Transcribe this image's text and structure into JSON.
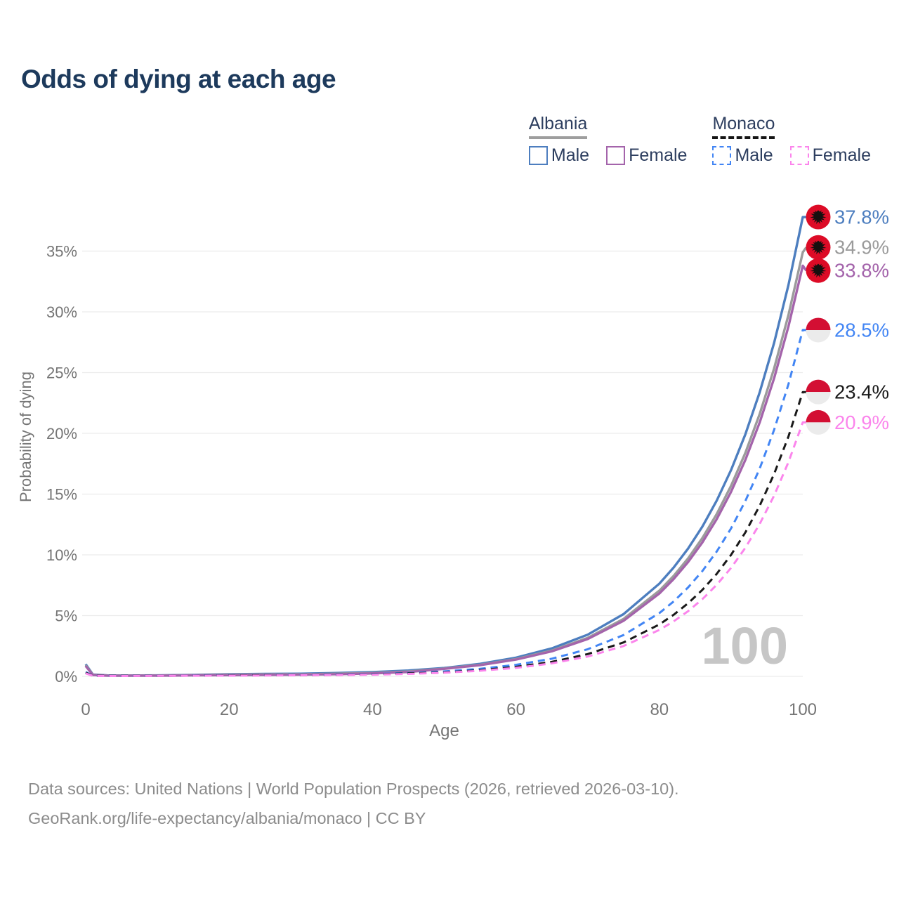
{
  "title": "Odds of dying at each age",
  "legend": {
    "groups": [
      {
        "label": "Albania",
        "line_style": "solid",
        "underline_color": "#9e9e9e",
        "items": [
          {
            "label": "Male",
            "color": "#4d7ebf",
            "dashed": false
          },
          {
            "label": "Female",
            "color": "#a464ab",
            "dashed": false
          }
        ]
      },
      {
        "label": "Monaco",
        "line_style": "dashed",
        "underline_color": "#151515",
        "items": [
          {
            "label": "Male",
            "color": "#4285f4",
            "dashed": true
          },
          {
            "label": "Female",
            "color": "#fb85ec",
            "dashed": true
          }
        ]
      }
    ]
  },
  "chart_data": {
    "type": "line",
    "title": "Odds of dying at each age",
    "xlabel": "Age",
    "ylabel": "Probability of dying",
    "xlim": [
      0,
      100
    ],
    "ylim": [
      0,
      38
    ],
    "grid": "horizontal-only",
    "watermark": "100",
    "x_ticks": [
      {
        "value": 0,
        "label": "0"
      },
      {
        "value": 20,
        "label": "20"
      },
      {
        "value": 40,
        "label": "40"
      },
      {
        "value": 60,
        "label": "60"
      },
      {
        "value": 80,
        "label": "80"
      },
      {
        "value": 100,
        "label": "100"
      }
    ],
    "y_ticks": [
      {
        "value": 0,
        "label": "0%"
      },
      {
        "value": 5,
        "label": "5%"
      },
      {
        "value": 10,
        "label": "10%"
      },
      {
        "value": 15,
        "label": "15%"
      },
      {
        "value": 20,
        "label": "20%"
      },
      {
        "value": 25,
        "label": "25%"
      },
      {
        "value": 30,
        "label": "30%"
      },
      {
        "value": 35,
        "label": "35%"
      }
    ],
    "series": [
      {
        "id": "albania-male",
        "country": "Albania",
        "group": "Male",
        "color": "#4d7ebf",
        "dashed": false,
        "flag": "albania",
        "end_label": "37.8%",
        "end_value": 37.8,
        "points": [
          [
            0,
            1.0
          ],
          [
            1,
            0.15
          ],
          [
            3,
            0.08
          ],
          [
            5,
            0.07
          ],
          [
            10,
            0.08
          ],
          [
            15,
            0.12
          ],
          [
            20,
            0.18
          ],
          [
            25,
            0.2
          ],
          [
            30,
            0.22
          ],
          [
            35,
            0.28
          ],
          [
            40,
            0.35
          ],
          [
            45,
            0.48
          ],
          [
            50,
            0.69
          ],
          [
            55,
            1.03
          ],
          [
            60,
            1.54
          ],
          [
            65,
            2.3
          ],
          [
            70,
            3.43
          ],
          [
            75,
            5.12
          ],
          [
            80,
            7.63
          ],
          [
            82,
            8.96
          ],
          [
            84,
            10.51
          ],
          [
            86,
            12.33
          ],
          [
            88,
            14.47
          ],
          [
            90,
            16.98
          ],
          [
            92,
            19.93
          ],
          [
            94,
            23.39
          ],
          [
            96,
            27.45
          ],
          [
            98,
            32.21
          ],
          [
            100,
            37.8
          ]
        ]
      },
      {
        "id": "albania-all",
        "country": "Albania",
        "group": "All",
        "color": "#9b9b9b",
        "dashed": false,
        "flag": "albania",
        "end_label": "34.9%",
        "end_value": 34.9,
        "points": [
          [
            0,
            0.92
          ],
          [
            1,
            0.13
          ],
          [
            3,
            0.07
          ],
          [
            5,
            0.06
          ],
          [
            10,
            0.07
          ],
          [
            15,
            0.1
          ],
          [
            20,
            0.14
          ],
          [
            25,
            0.16
          ],
          [
            30,
            0.18
          ],
          [
            35,
            0.22
          ],
          [
            40,
            0.28
          ],
          [
            45,
            0.4
          ],
          [
            50,
            0.64
          ],
          [
            55,
            0.95
          ],
          [
            60,
            1.42
          ],
          [
            65,
            2.12
          ],
          [
            70,
            3.17
          ],
          [
            75,
            4.72
          ],
          [
            80,
            7.05
          ],
          [
            82,
            8.27
          ],
          [
            84,
            9.7
          ],
          [
            86,
            11.39
          ],
          [
            88,
            13.36
          ],
          [
            90,
            15.68
          ],
          [
            92,
            18.4
          ],
          [
            94,
            21.6
          ],
          [
            96,
            25.34
          ],
          [
            98,
            29.74
          ],
          [
            100,
            34.9
          ]
        ]
      },
      {
        "id": "albania-female",
        "country": "Albania",
        "group": "Female",
        "color": "#a464ab",
        "dashed": false,
        "flag": "albania",
        "end_label": "33.8%",
        "end_value": 33.8,
        "points": [
          [
            0,
            0.85
          ],
          [
            1,
            0.11
          ],
          [
            3,
            0.06
          ],
          [
            5,
            0.05
          ],
          [
            10,
            0.06
          ],
          [
            15,
            0.08
          ],
          [
            20,
            0.1
          ],
          [
            25,
            0.12
          ],
          [
            30,
            0.14
          ],
          [
            35,
            0.18
          ],
          [
            40,
            0.24
          ],
          [
            45,
            0.36
          ],
          [
            50,
            0.62
          ],
          [
            55,
            0.92
          ],
          [
            60,
            1.38
          ],
          [
            65,
            2.06
          ],
          [
            70,
            3.07
          ],
          [
            75,
            4.57
          ],
          [
            80,
            6.82
          ],
          [
            82,
            8.01
          ],
          [
            84,
            9.4
          ],
          [
            86,
            11.03
          ],
          [
            88,
            12.94
          ],
          [
            90,
            15.19
          ],
          [
            92,
            17.82
          ],
          [
            94,
            20.91
          ],
          [
            96,
            24.54
          ],
          [
            98,
            28.8
          ],
          [
            100,
            33.8
          ]
        ]
      },
      {
        "id": "monaco-male",
        "country": "Monaco",
        "group": "Male",
        "color": "#4285f4",
        "dashed": true,
        "flag": "monaco",
        "end_label": "28.5%",
        "end_value": 28.5,
        "points": [
          [
            0,
            0.35
          ],
          [
            1,
            0.06
          ],
          [
            3,
            0.04
          ],
          [
            5,
            0.04
          ],
          [
            10,
            0.05
          ],
          [
            15,
            0.07
          ],
          [
            20,
            0.09
          ],
          [
            25,
            0.1
          ],
          [
            30,
            0.12
          ],
          [
            35,
            0.15
          ],
          [
            40,
            0.19
          ],
          [
            45,
            0.28
          ],
          [
            50,
            0.41
          ],
          [
            55,
            0.62
          ],
          [
            60,
            0.95
          ],
          [
            65,
            1.45
          ],
          [
            70,
            2.23
          ],
          [
            75,
            3.4
          ],
          [
            80,
            5.21
          ],
          [
            82,
            6.17
          ],
          [
            84,
            7.31
          ],
          [
            86,
            8.67
          ],
          [
            88,
            10.28
          ],
          [
            90,
            12.18
          ],
          [
            92,
            14.44
          ],
          [
            94,
            17.11
          ],
          [
            96,
            20.29
          ],
          [
            98,
            24.04
          ],
          [
            100,
            28.5
          ]
        ]
      },
      {
        "id": "monaco-all",
        "country": "Monaco",
        "group": "All",
        "color": "#191919",
        "dashed": true,
        "flag": "monaco",
        "end_label": "23.4%",
        "end_value": 23.4,
        "points": [
          [
            0,
            0.3
          ],
          [
            1,
            0.05
          ],
          [
            3,
            0.04
          ],
          [
            5,
            0.04
          ],
          [
            10,
            0.04
          ],
          [
            15,
            0.06
          ],
          [
            20,
            0.08
          ],
          [
            25,
            0.09
          ],
          [
            30,
            0.1
          ],
          [
            35,
            0.13
          ],
          [
            40,
            0.17
          ],
          [
            45,
            0.24
          ],
          [
            50,
            0.33
          ],
          [
            55,
            0.51
          ],
          [
            60,
            0.78
          ],
          [
            65,
            1.19
          ],
          [
            70,
            1.83
          ],
          [
            75,
            2.79
          ],
          [
            80,
            4.27
          ],
          [
            82,
            5.07
          ],
          [
            84,
            6.01
          ],
          [
            86,
            7.12
          ],
          [
            88,
            8.44
          ],
          [
            90,
            10.0
          ],
          [
            92,
            11.85
          ],
          [
            94,
            14.05
          ],
          [
            96,
            16.66
          ],
          [
            98,
            19.74
          ],
          [
            100,
            23.4
          ]
        ]
      },
      {
        "id": "monaco-female",
        "country": "Monaco",
        "group": "Female",
        "color": "#fb85ec",
        "dashed": true,
        "flag": "monaco",
        "end_label": "20.9%",
        "end_value": 20.9,
        "points": [
          [
            0,
            0.25
          ],
          [
            1,
            0.04
          ],
          [
            3,
            0.03
          ],
          [
            5,
            0.03
          ],
          [
            10,
            0.04
          ],
          [
            15,
            0.05
          ],
          [
            20,
            0.06
          ],
          [
            25,
            0.07
          ],
          [
            30,
            0.09
          ],
          [
            35,
            0.11
          ],
          [
            40,
            0.14
          ],
          [
            45,
            0.2
          ],
          [
            50,
            0.3
          ],
          [
            55,
            0.46
          ],
          [
            60,
            0.7
          ],
          [
            65,
            1.07
          ],
          [
            70,
            1.63
          ],
          [
            75,
            2.5
          ],
          [
            80,
            3.82
          ],
          [
            82,
            4.53
          ],
          [
            84,
            5.36
          ],
          [
            86,
            6.36
          ],
          [
            88,
            7.54
          ],
          [
            90,
            8.93
          ],
          [
            92,
            10.59
          ],
          [
            94,
            12.55
          ],
          [
            96,
            14.88
          ],
          [
            98,
            17.63
          ],
          [
            100,
            20.9
          ]
        ]
      }
    ],
    "flag_colors": {
      "albania_red": "#dd0b26",
      "albania_eagle": "#15100f",
      "monaco_red": "#d30f33",
      "monaco_white": "#ebebeb"
    },
    "style": {
      "grid_color": "#ececec",
      "tick_color": "#757575",
      "watermark_color": "#c6c6c6"
    }
  },
  "footer": {
    "line1": "Data sources: United Nations | World Population Prospects (2026, retrieved 2026-03-10).",
    "line2": "GeoRank.org/life-expectancy/albania/monaco | CC BY"
  }
}
